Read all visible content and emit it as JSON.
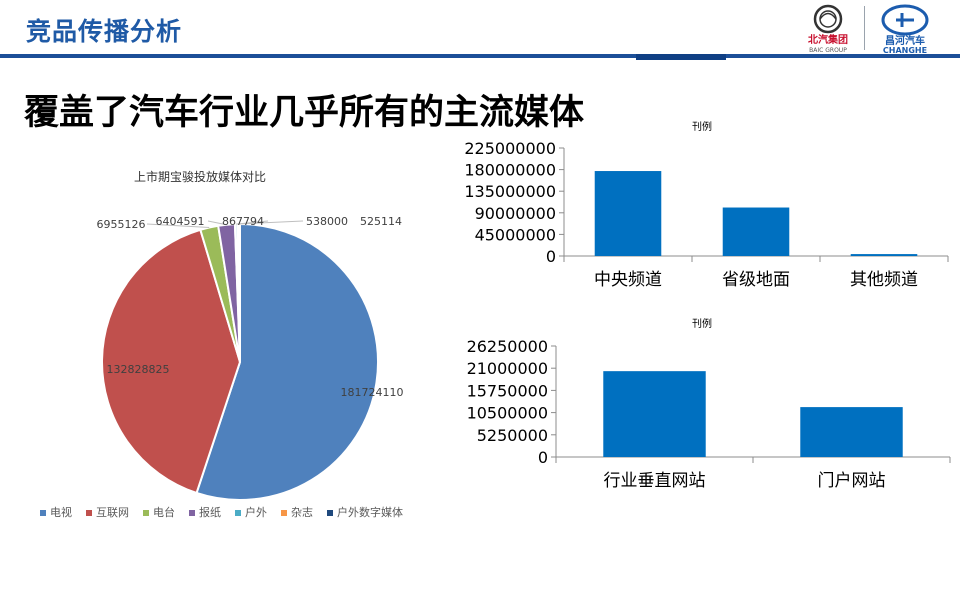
{
  "header": {
    "title": "竞品传播分析",
    "logo_left_cn": "北汽集团",
    "logo_left_en": "BAIC GROUP",
    "logo_right_cn": "昌河汽车",
    "logo_right_en": "CHANGHE"
  },
  "main_heading": "覆盖了汽车行业几乎所有的主流媒体",
  "chart_data": [
    {
      "type": "pie",
      "title": "上市期宝骏投放媒体对比",
      "labels": [
        "电视",
        "互联网",
        "电台",
        "报纸",
        "户外",
        "杂志",
        "户外数字媒体"
      ],
      "values": [
        181724110,
        132828825,
        6955126,
        6404591,
        867794,
        538000,
        525114
      ],
      "colors": [
        "#4f81bd",
        "#c0504d",
        "#9bbb59",
        "#8064a2",
        "#4bacc6",
        "#f79646",
        "#1f497d"
      ],
      "legend": "bottom"
    },
    {
      "type": "bar",
      "title": "刊例",
      "categories": [
        "中央频道",
        "省级地面",
        "其他频道"
      ],
      "values": [
        177000000,
        101000000,
        4000000
      ],
      "yticks": [
        "0",
        "45000000",
        "90000000",
        "135000000",
        "180000000",
        "225000000"
      ],
      "ylim": [
        0,
        225000000
      ],
      "color": "#0070c0"
    },
    {
      "type": "bar",
      "title": "刊例",
      "categories": [
        "行业垂直网站",
        "门户网站"
      ],
      "values": [
        20300000,
        11800000
      ],
      "yticks": [
        "0",
        "5250000",
        "10500000",
        "15750000",
        "21000000",
        "26250000"
      ],
      "ylim": [
        0,
        26250000
      ],
      "color": "#0070c0"
    }
  ]
}
